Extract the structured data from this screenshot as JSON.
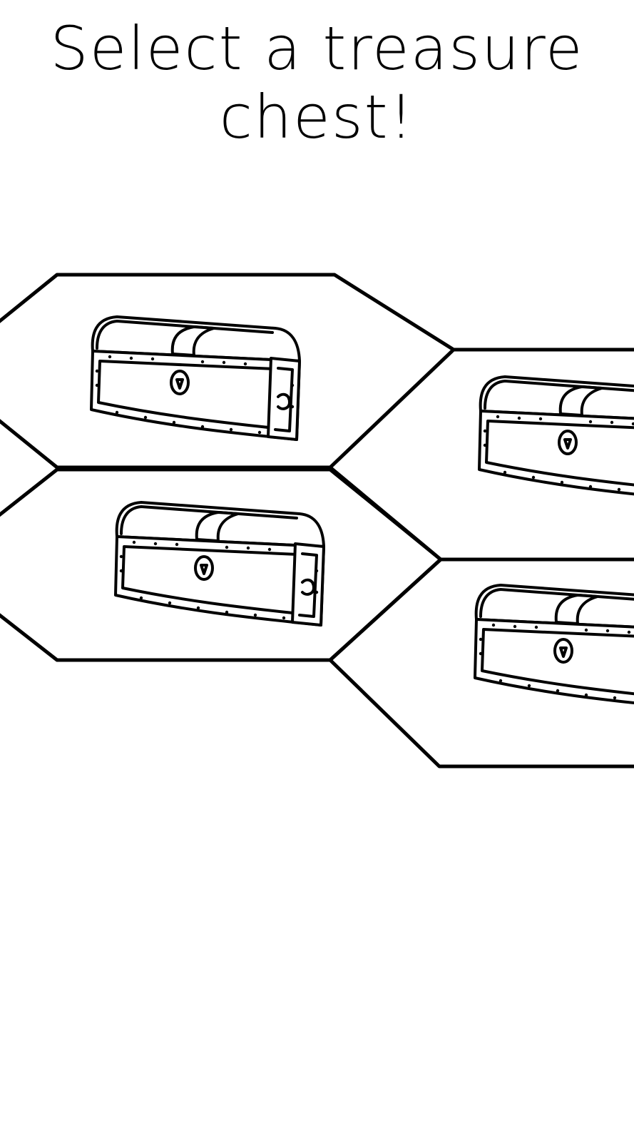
{
  "screen": {
    "title_line1": "Select a treasure",
    "title_line2": "chest!"
  },
  "board": {
    "cells": [
      {
        "id": "top-left",
        "content": "treasure-chest"
      },
      {
        "id": "bottom-left",
        "content": "treasure-chest"
      },
      {
        "id": "top-right",
        "content": "treasure-chest"
      },
      {
        "id": "bottom-right",
        "content": "treasure-chest"
      }
    ]
  },
  "colors": {
    "ink": "#000000",
    "paper": "#ffffff"
  }
}
